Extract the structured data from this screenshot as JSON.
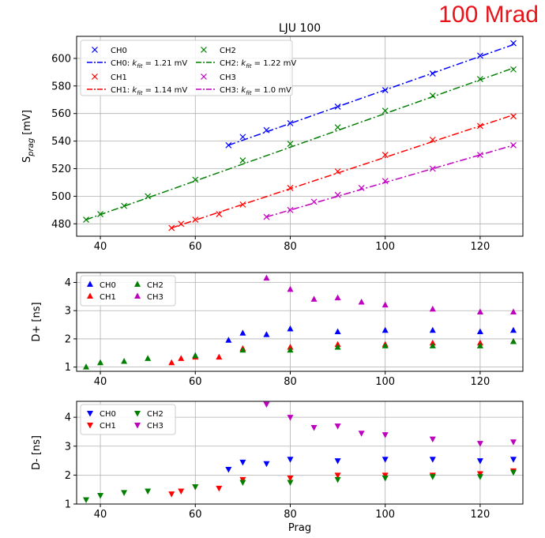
{
  "badge": "100 Mrad",
  "colors": {
    "CH0": "#0000ff",
    "CH1": "#ff0000",
    "CH2": "#008000",
    "CH3": "#bf00bf"
  },
  "chart_data": [
    {
      "type": "scatter",
      "title": "LJU 100",
      "xlabel": "",
      "ylabel": "S_prag [mV]",
      "xlim": [
        35,
        129
      ],
      "ylim": [
        471,
        616
      ],
      "xticks": [
        40,
        60,
        80,
        100,
        120
      ],
      "yticks": [
        480,
        500,
        520,
        540,
        560,
        580,
        600
      ],
      "grid": true,
      "marker": "x",
      "legend": {
        "placement": "top-left",
        "columns": 3
      },
      "series": [
        {
          "name": "CH0",
          "color": "#0000ff",
          "x": [
            67,
            70,
            75,
            80,
            90,
            100,
            110,
            120,
            127
          ],
          "y": [
            537,
            543,
            548,
            553,
            565,
            577,
            589,
            602,
            611
          ],
          "fit_label": "CH0: k_fit = 1.21 mV",
          "fit": [
            [
              67,
              537
            ],
            [
              127,
              610
            ]
          ]
        },
        {
          "name": "CH1",
          "color": "#ff0000",
          "x": [
            55,
            57,
            60,
            65,
            70,
            80,
            90,
            100,
            110,
            120,
            127
          ],
          "y": [
            477,
            480,
            483,
            487,
            494,
            506,
            518,
            530,
            541,
            551,
            558
          ],
          "fit_label": "CH1: k_fit = 1.14 mV",
          "fit": [
            [
              55,
              477
            ],
            [
              127,
              559
            ]
          ]
        },
        {
          "name": "CH2",
          "color": "#008000",
          "x": [
            37,
            40,
            45,
            50,
            60,
            70,
            80,
            90,
            100,
            110,
            120,
            127
          ],
          "y": [
            483,
            487,
            493,
            500,
            512,
            526,
            538,
            550,
            562,
            573,
            585,
            592
          ],
          "fit_label": "CH2: k_fit = 1.22 mV",
          "fit": [
            [
              37,
              483
            ],
            [
              127,
              593
            ]
          ]
        },
        {
          "name": "CH3",
          "color": "#bf00bf",
          "x": [
            75,
            80,
            85,
            90,
            95,
            100,
            110,
            120,
            127
          ],
          "y": [
            485,
            490,
            496,
            501,
            506,
            511,
            520,
            530,
            537
          ],
          "fit_label": "CH3: k_fit = 1.0 mV",
          "fit": [
            [
              75,
              485
            ],
            [
              127,
              537
            ]
          ]
        }
      ]
    },
    {
      "type": "scatter",
      "xlabel": "",
      "ylabel": "D+ [ns]",
      "xlim": [
        35,
        129
      ],
      "ylim": [
        0.85,
        4.35
      ],
      "xticks": [
        40,
        60,
        80,
        100,
        120
      ],
      "yticks": [
        1,
        2,
        3,
        4
      ],
      "grid": true,
      "marker": "triangle-up",
      "legend": {
        "placement": "top-left",
        "columns": 2
      },
      "series": [
        {
          "name": "CH0",
          "color": "#0000ff",
          "x": [
            60,
            67,
            70,
            75,
            80,
            90,
            100,
            110,
            120,
            127
          ],
          "y": [
            1.4,
            1.95,
            2.2,
            2.15,
            2.35,
            2.25,
            2.3,
            2.3,
            2.25,
            2.3
          ]
        },
        {
          "name": "CH1",
          "color": "#ff0000",
          "x": [
            55,
            57,
            60,
            65,
            70,
            80,
            90,
            100,
            110,
            120,
            127
          ],
          "y": [
            1.15,
            1.3,
            1.35,
            1.35,
            1.65,
            1.7,
            1.8,
            1.8,
            1.85,
            1.85,
            1.9
          ]
        },
        {
          "name": "CH2",
          "color": "#008000",
          "x": [
            37,
            40,
            45,
            50,
            60,
            70,
            80,
            90,
            100,
            110,
            120,
            127
          ],
          "y": [
            1.0,
            1.15,
            1.2,
            1.3,
            1.4,
            1.6,
            1.6,
            1.7,
            1.75,
            1.75,
            1.75,
            1.9
          ]
        },
        {
          "name": "CH3",
          "color": "#bf00bf",
          "x": [
            75,
            80,
            85,
            90,
            95,
            100,
            110,
            120,
            127
          ],
          "y": [
            4.15,
            3.75,
            3.4,
            3.45,
            3.3,
            3.2,
            3.05,
            2.95,
            2.95
          ]
        }
      ]
    },
    {
      "type": "scatter",
      "xlabel": "Prag",
      "ylabel": "D- [ns]",
      "xlim": [
        35,
        129
      ],
      "ylim": [
        1.0,
        4.55
      ],
      "xticks": [
        40,
        60,
        80,
        100,
        120
      ],
      "yticks": [
        1,
        2,
        3,
        4
      ],
      "grid": true,
      "marker": "triangle-down",
      "legend": {
        "placement": "top-left",
        "columns": 2
      },
      "series": [
        {
          "name": "CH0",
          "color": "#0000ff",
          "x": [
            67,
            70,
            75,
            80,
            90,
            100,
            110,
            120,
            127
          ],
          "y": [
            2.2,
            2.45,
            2.4,
            2.55,
            2.5,
            2.55,
            2.55,
            2.5,
            2.55
          ]
        },
        {
          "name": "CH1",
          "color": "#ff0000",
          "x": [
            55,
            57,
            60,
            65,
            70,
            80,
            90,
            100,
            110,
            120,
            127
          ],
          "y": [
            1.35,
            1.45,
            1.6,
            1.55,
            1.85,
            1.9,
            2.0,
            2.0,
            2.0,
            2.05,
            2.15
          ]
        },
        {
          "name": "CH2",
          "color": "#008000",
          "x": [
            37,
            40,
            45,
            50,
            60,
            70,
            80,
            90,
            100,
            110,
            120,
            127
          ],
          "y": [
            1.15,
            1.3,
            1.4,
            1.45,
            1.6,
            1.75,
            1.75,
            1.85,
            1.9,
            1.95,
            1.95,
            2.1
          ]
        },
        {
          "name": "CH3",
          "color": "#bf00bf",
          "x": [
            75,
            80,
            85,
            90,
            95,
            100,
            110,
            120,
            127
          ],
          "y": [
            4.45,
            4.0,
            3.65,
            3.7,
            3.45,
            3.4,
            3.25,
            3.1,
            3.15
          ]
        }
      ]
    }
  ]
}
